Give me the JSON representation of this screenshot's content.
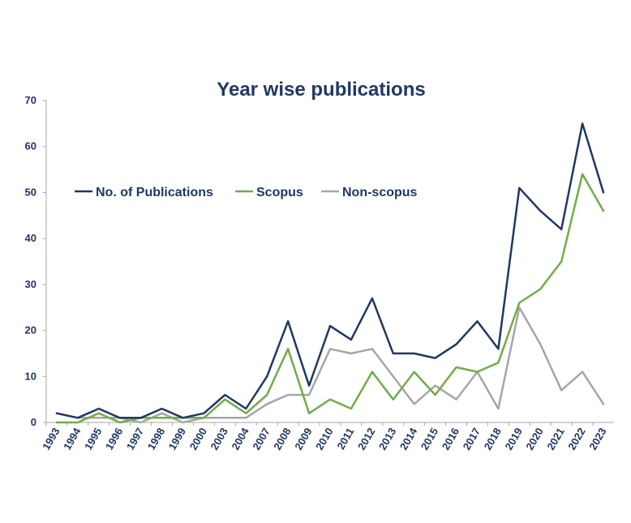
{
  "chart_data": {
    "type": "line",
    "title": "Year wise publications",
    "xlabel": "",
    "ylabel": "",
    "ylim": [
      0,
      70
    ],
    "yticks": [
      0,
      10,
      20,
      30,
      40,
      50,
      60,
      70
    ],
    "categories": [
      "1993",
      "1994",
      "1995",
      "1996",
      "1997",
      "1998",
      "1999",
      "2000",
      "2003",
      "2004",
      "2007",
      "2008",
      "2009",
      "2010",
      "2011",
      "2012",
      "2013",
      "2014",
      "2015",
      "2016",
      "2017",
      "2018",
      "2019",
      "2020",
      "2021",
      "2022",
      "2023"
    ],
    "series": [
      {
        "name": "No. of Publications",
        "color": "#1f3864",
        "values": [
          2,
          1,
          3,
          1,
          1,
          3,
          1,
          2,
          6,
          3,
          10,
          22,
          8,
          21,
          18,
          27,
          15,
          15,
          14,
          17,
          22,
          16,
          51,
          46,
          42,
          65,
          50
        ]
      },
      {
        "name": "Scopus",
        "color": "#70ad47",
        "values": [
          0,
          0,
          2,
          0,
          1,
          1,
          1,
          1,
          5,
          2,
          6,
          16,
          2,
          5,
          3,
          11,
          5,
          11,
          6,
          12,
          11,
          13,
          26,
          29,
          35,
          54,
          46
        ]
      },
      {
        "name": "Non-scopus",
        "color": "#a6a6a6",
        "values": [
          2,
          1,
          1,
          1,
          0,
          2,
          0,
          1,
          1,
          1,
          4,
          6,
          6,
          16,
          15,
          16,
          10,
          4,
          8,
          5,
          11,
          3,
          25,
          17,
          7,
          11,
          4
        ]
      }
    ],
    "grid": false,
    "legend_position": "upper-left, inside plot"
  }
}
